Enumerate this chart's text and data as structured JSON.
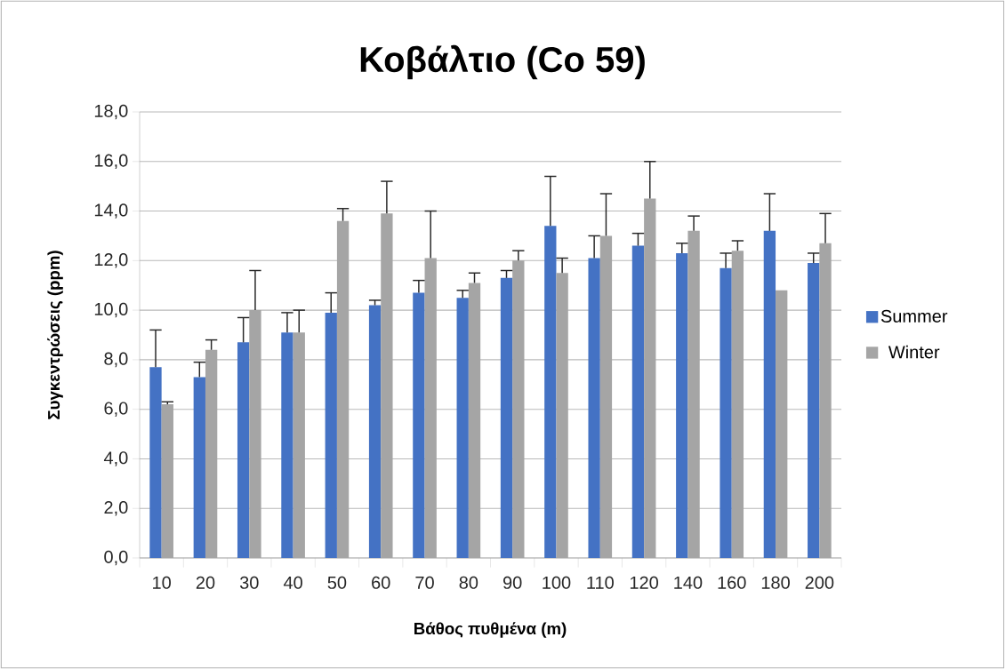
{
  "chart_data": {
    "type": "bar",
    "title": "Κοβάλτιο (Co 59)",
    "xlabel": "Βάθος πυθμένα (m)",
    "ylabel": "Συγκεντρώσεις (ppm)",
    "categories": [
      "10",
      "20",
      "30",
      "40",
      "50",
      "60",
      "70",
      "80",
      "90",
      "100",
      "110",
      "120",
      "140",
      "160",
      "180",
      "200"
    ],
    "series": [
      {
        "name": "Summer",
        "color": "#4472c4",
        "values": [
          7.7,
          7.3,
          8.7,
          9.1,
          9.9,
          10.2,
          10.7,
          10.5,
          11.3,
          13.4,
          12.1,
          12.6,
          12.3,
          11.7,
          13.2,
          11.9
        ],
        "errors": [
          [
            7.7,
            9.2
          ],
          [
            7.3,
            7.9
          ],
          [
            8.7,
            9.7
          ],
          [
            9.1,
            9.9
          ],
          [
            9.9,
            10.7
          ],
          [
            10.2,
            10.4
          ],
          [
            10.7,
            11.2
          ],
          [
            10.5,
            10.8
          ],
          [
            11.3,
            11.6
          ],
          [
            13.4,
            15.4
          ],
          [
            12.1,
            13.0
          ],
          [
            12.6,
            13.1
          ],
          [
            12.3,
            12.7
          ],
          [
            11.7,
            12.3
          ],
          [
            13.2,
            14.7
          ],
          [
            11.9,
            12.3
          ]
        ]
      },
      {
        "name": "Winter",
        "color": "#a5a5a5",
        "values": [
          6.2,
          8.4,
          10.0,
          9.1,
          13.6,
          13.9,
          12.1,
          11.1,
          12.0,
          11.5,
          13.0,
          14.5,
          13.2,
          12.4,
          10.8,
          12.7
        ],
        "errors": [
          [
            6.2,
            6.3
          ],
          [
            8.4,
            8.8
          ],
          [
            10.0,
            11.6
          ],
          [
            9.1,
            10.0
          ],
          [
            13.6,
            14.1
          ],
          [
            13.9,
            15.2
          ],
          [
            12.1,
            14.0
          ],
          [
            11.1,
            11.5
          ],
          [
            12.0,
            12.4
          ],
          [
            11.5,
            12.1
          ],
          [
            13.0,
            14.7
          ],
          [
            14.5,
            16.0
          ],
          [
            13.2,
            13.8
          ],
          [
            12.4,
            12.8
          ],
          null,
          [
            12.7,
            13.9
          ]
        ]
      }
    ],
    "ylim": [
      0,
      18
    ],
    "yticks": [
      {
        "value": 0,
        "label": "0,0"
      },
      {
        "value": 2,
        "label": "2,0"
      },
      {
        "value": 4,
        "label": "4,0"
      },
      {
        "value": 6,
        "label": "6,0"
      },
      {
        "value": 8,
        "label": "8,0"
      },
      {
        "value": 10,
        "label": "10,0"
      },
      {
        "value": 12,
        "label": "12,0"
      },
      {
        "value": 14,
        "label": "14,0"
      },
      {
        "value": 16,
        "label": "16,0"
      },
      {
        "value": 18,
        "label": "18,0"
      }
    ],
    "grid": "y",
    "legend": "right"
  }
}
